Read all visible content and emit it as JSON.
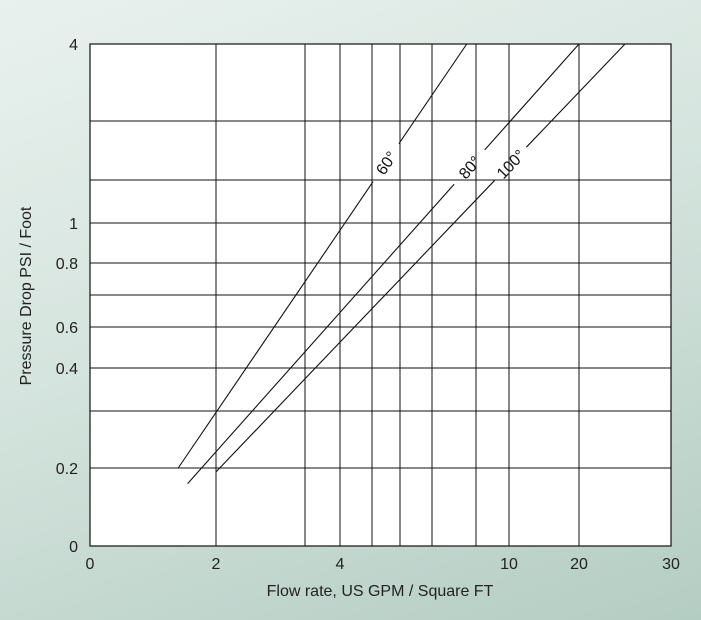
{
  "chart_data": {
    "type": "line",
    "title": "",
    "xlabel": "Flow rate, US GPM / Square FT",
    "ylabel": "Pressure Drop PSI / Foot",
    "x_ticks": [
      "0",
      "2",
      "4",
      "10",
      "20",
      "30"
    ],
    "y_ticks": [
      "0",
      "0.2",
      "0.4",
      "0.6",
      "0.8",
      "1",
      "4"
    ],
    "grid": true,
    "series": [
      {
        "name": "60°",
        "x": [
          1.4,
          8.5
        ],
        "y": [
          0.2,
          4
        ]
      },
      {
        "name": "80°",
        "x": [
          1.55,
          20
        ],
        "y": [
          0.16,
          4
        ]
      },
      {
        "name": "100°",
        "x": [
          2,
          25
        ],
        "y": [
          0.19,
          4
        ]
      }
    ]
  }
}
